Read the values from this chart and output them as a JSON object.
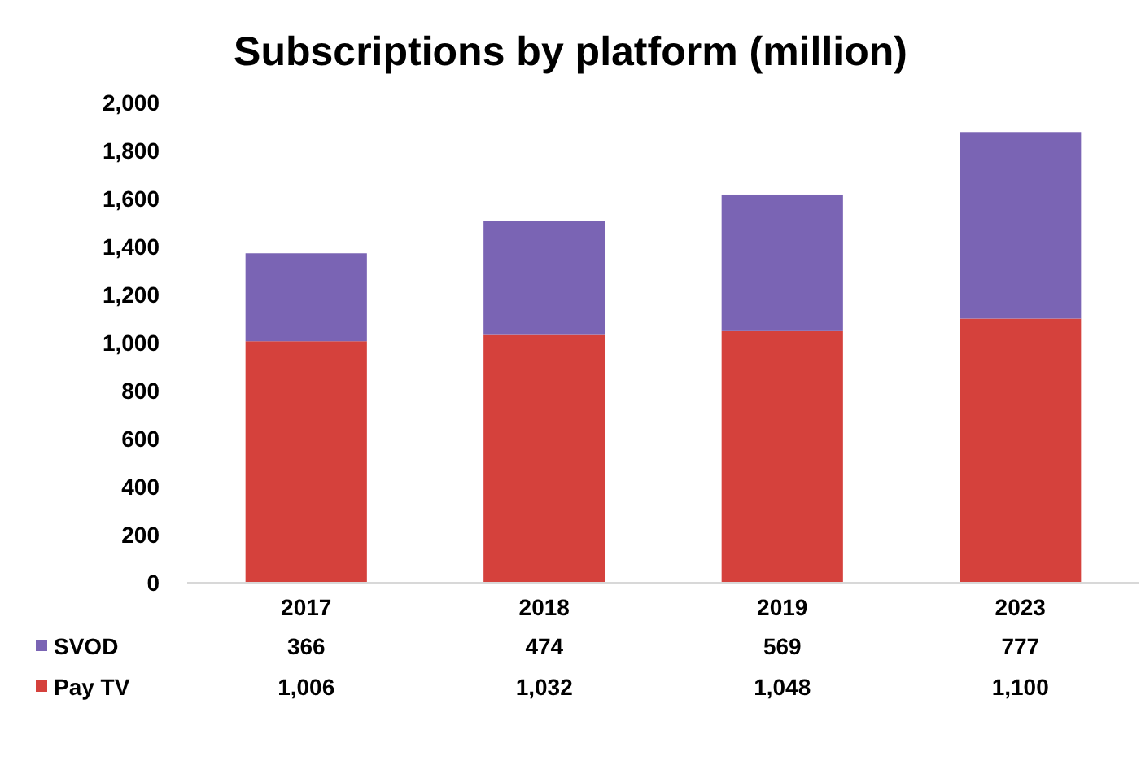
{
  "chart_data": {
    "type": "bar",
    "title": "Subscriptions by platform (million)",
    "stacked": true,
    "legend": "bottom left",
    "grid": false,
    "categories": [
      "2017",
      "2018",
      "2019",
      "2023"
    ],
    "series": [
      {
        "name": "Pay TV",
        "color": "#d5413c",
        "values": [
          1006,
          1032,
          1048,
          1100
        ],
        "value_labels": [
          "1,006",
          "1,032",
          "1,048",
          "1,100"
        ]
      },
      {
        "name": "SVOD",
        "color": "#7a64b4",
        "values": [
          366,
          474,
          569,
          777
        ],
        "value_labels": [
          "366",
          "474",
          "569",
          "777"
        ]
      }
    ],
    "ylim": [
      0,
      2000
    ],
    "yticks": [
      {
        "value": 0,
        "label": "0"
      },
      {
        "value": 200,
        "label": "200"
      },
      {
        "value": 400,
        "label": "400"
      },
      {
        "value": 600,
        "label": "600"
      },
      {
        "value": 800,
        "label": "800"
      },
      {
        "value": 1000,
        "label": "1,000"
      },
      {
        "value": 1200,
        "label": "1,200"
      },
      {
        "value": 1400,
        "label": "1,400"
      },
      {
        "value": 1600,
        "label": "1,600"
      },
      {
        "value": 1800,
        "label": "1,800"
      },
      {
        "value": 2000,
        "label": "2,000"
      }
    ]
  }
}
